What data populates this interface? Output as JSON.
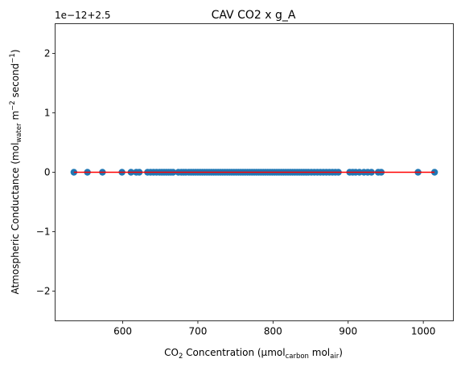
{
  "chart_data": {
    "type": "scatter",
    "title": "CAV CO2 x g_A",
    "offset_label": "1e−12+2.5",
    "xlabel": {
      "prefix": "CO",
      "prefix_sub": "2",
      "mid": " Concentration (µmol",
      "mid_sub": "carbon",
      "tail": " mol",
      "tail_sub": "air",
      "end": ")"
    },
    "ylabel": {
      "a": "Atmospheric Conductance (mol",
      "a_sub": "water",
      "b": " m",
      "b_sup": "−2",
      "c": " second",
      "c_sup": "−1",
      "d": ")"
    },
    "xlim": [
      510,
      1040
    ],
    "ylim": [
      -2.5,
      2.5
    ],
    "x_ticks": [
      600,
      700,
      800,
      900,
      1000
    ],
    "y_ticks": [
      -2,
      -1,
      0,
      1,
      2
    ],
    "tick_labels_x": [
      "600",
      "700",
      "800",
      "900",
      "1000"
    ],
    "tick_labels_y": [
      "−2",
      "−1",
      "0",
      "1",
      "2"
    ],
    "point_color": "#1f77b4",
    "line_color": "#ff0000",
    "fit_line": {
      "x": [
        535,
        1015
      ],
      "y": [
        0,
        0
      ]
    },
    "points_x": [
      535,
      553,
      573,
      599,
      611,
      618,
      622,
      633,
      637,
      641,
      645,
      649,
      652,
      655,
      658,
      661,
      664,
      667,
      674,
      678,
      681,
      684,
      688,
      691,
      694,
      697,
      700,
      703,
      706,
      709,
      712,
      715,
      718,
      721,
      724,
      727,
      730,
      733,
      736,
      739,
      742,
      745,
      748,
      751,
      754,
      757,
      760,
      763,
      766,
      769,
      772,
      775,
      778,
      781,
      784,
      787,
      790,
      793,
      796,
      799,
      802,
      805,
      808,
      811,
      814,
      817,
      820,
      823,
      826,
      829,
      832,
      835,
      838,
      841,
      844,
      847,
      851,
      855,
      859,
      863,
      867,
      871,
      875,
      879,
      883,
      887,
      902,
      906,
      910,
      915,
      921,
      926,
      931,
      940,
      944,
      993,
      1015
    ]
  }
}
